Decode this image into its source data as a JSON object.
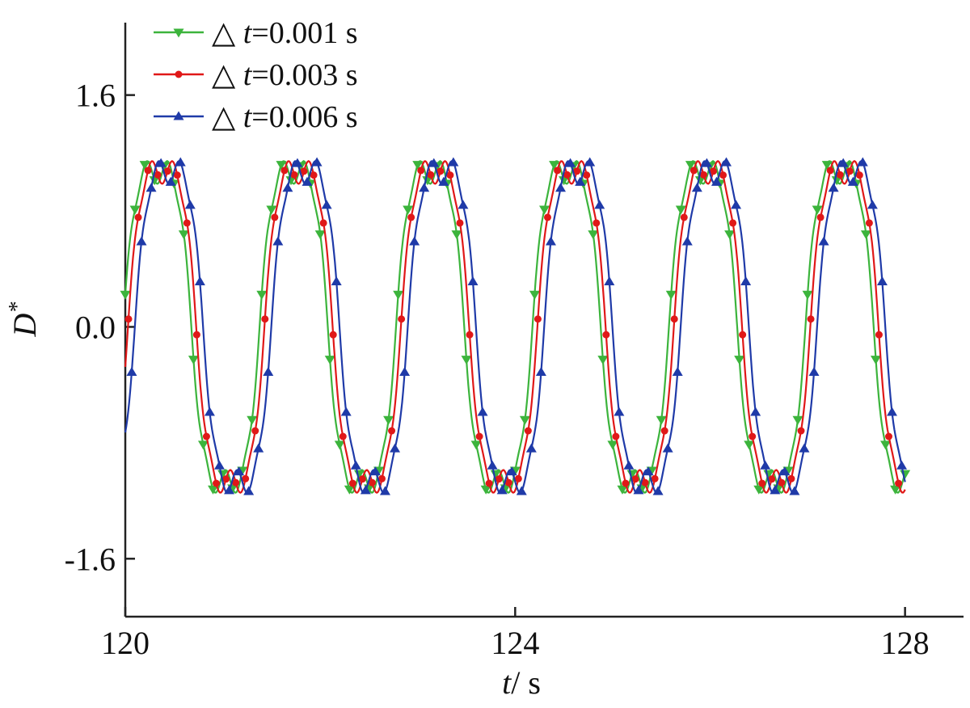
{
  "chart_data": {
    "type": "line",
    "xlabel_symbol": "t",
    "xlabel_unit": "/ s",
    "ylabel_symbol": "D",
    "ylabel_sup": "*",
    "xlim": [
      120,
      128.6
    ],
    "ylim": [
      -2.0,
      2.1
    ],
    "xticks": [
      {
        "value": 120,
        "label": "120"
      },
      {
        "value": 124,
        "label": "124"
      },
      {
        "value": 128,
        "label": "128"
      }
    ],
    "yticks": [
      {
        "value": 1.6,
        "label": "1.6"
      },
      {
        "value": 0.0,
        "label": "0.0"
      },
      {
        "value": -1.6,
        "label": "-1.6"
      }
    ],
    "grid": false,
    "legend_position": "top-left",
    "period": 1.4,
    "amplitude": 1.25,
    "series": [
      {
        "name": "t=0.001 s",
        "legend_prefix": "△ ",
        "legend_symbol": "t",
        "legend_value": "=0.001 s",
        "color": "#3cb43c",
        "marker": "triangle-down",
        "phase": 0.0,
        "end": 0.95
      },
      {
        "name": "t=0.003 s",
        "legend_prefix": "△ ",
        "legend_symbol": "t",
        "legend_value": "=0.003 s",
        "color": "#e01818",
        "marker": "circle",
        "phase": 0.05,
        "end": 0.48
      },
      {
        "name": "t=0.006 s",
        "legend_prefix": "△ ",
        "legend_symbol": "t",
        "legend_value": "=0.006 s",
        "color": "#1f3aa8",
        "marker": "triangle-up",
        "phase": 0.12,
        "end": 0.3
      }
    ]
  }
}
